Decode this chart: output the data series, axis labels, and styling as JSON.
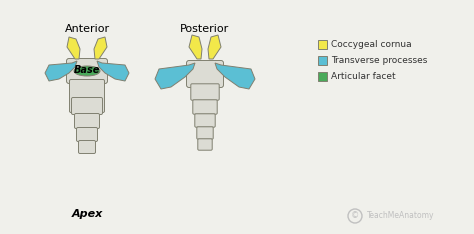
{
  "background_color": "#f0f0eb",
  "title_anterior": "Anterior",
  "title_posterior": "Posterior",
  "label_base": "Base",
  "label_apex": "Apex",
  "watermark_text": "TeachMeAnatomy",
  "legend_items": [
    {
      "label": "Coccygeal cornua",
      "color": "#f2e84a"
    },
    {
      "label": "Transverse processes",
      "color": "#5bbfd4"
    },
    {
      "label": "Articular facet",
      "color": "#4aaa5a"
    }
  ],
  "color_yellow": "#f2e84a",
  "color_blue": "#5bbfd4",
  "color_green": "#4aaa5a",
  "color_bone": "#dcdcd4",
  "color_outline": "#808070",
  "title_fontsize": 8,
  "label_fontsize": 7,
  "legend_fontsize": 6.5
}
